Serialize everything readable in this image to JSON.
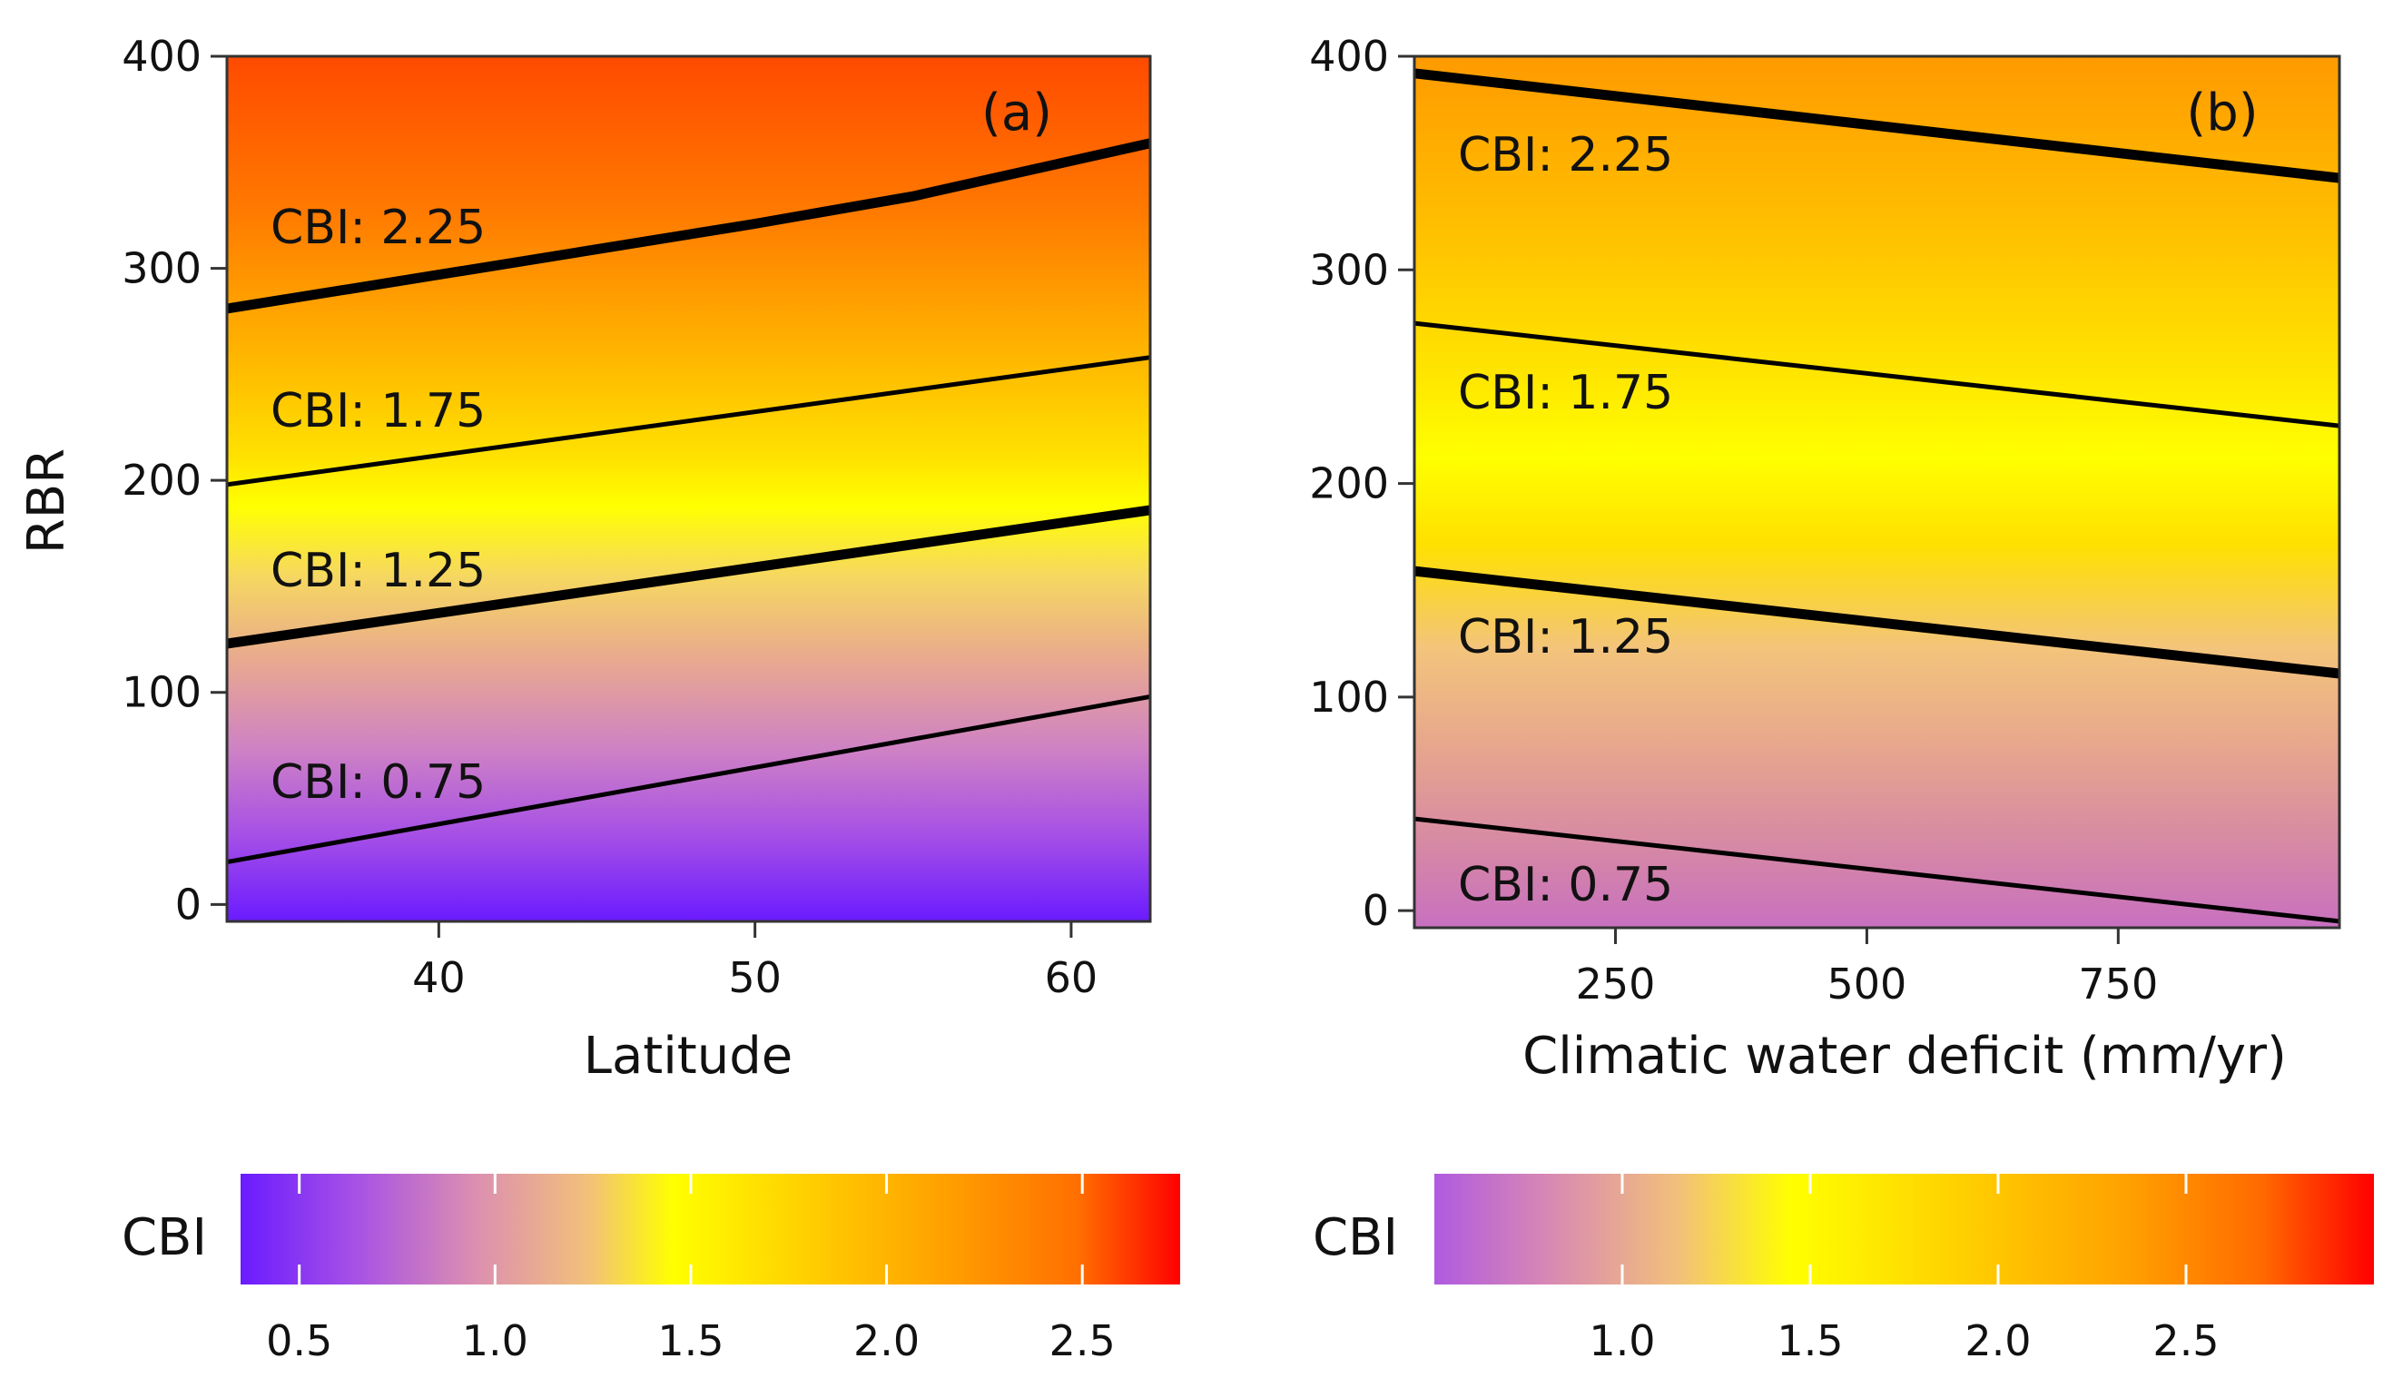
{
  "chart_data": [
    {
      "type": "heatmap",
      "panel_label": "(a)",
      "xlabel": "Latitude",
      "ylabel": "RBR",
      "xlim": [
        33.3,
        62.5
      ],
      "ylim": [
        -8,
        400
      ],
      "x_ticks": [
        40,
        50,
        60
      ],
      "y_ticks": [
        0,
        100,
        200,
        300,
        400
      ],
      "fill_variable": "CBI",
      "contours": [
        {
          "label": "CBI: 2.25",
          "level": 2.25,
          "points": [
            [
              33.3,
              281
            ],
            [
              40,
              297
            ],
            [
              45,
              309
            ],
            [
              50,
              321
            ],
            [
              55,
              334
            ],
            [
              62.5,
              359
            ]
          ],
          "emphasis": "thick"
        },
        {
          "label": "CBI: 1.75",
          "level": 1.75,
          "points": [
            [
              33.3,
              198
            ],
            [
              62.5,
              258
            ]
          ],
          "emphasis": "thin"
        },
        {
          "label": "CBI: 1.25",
          "level": 1.25,
          "points": [
            [
              33.3,
              123
            ],
            [
              62.5,
              186
            ]
          ],
          "emphasis": "thick"
        },
        {
          "label": "CBI: 0.75",
          "level": 0.75,
          "points": [
            [
              33.3,
              20
            ],
            [
              62.5,
              98
            ]
          ],
          "emphasis": "thin"
        }
      ],
      "colorbar": {
        "title": "CBI",
        "ticks": [
          0.5,
          1.0,
          1.5,
          2.0,
          2.5
        ],
        "tick_labels": [
          "0.5",
          "1.0",
          "1.5",
          "2.0",
          "2.5"
        ],
        "range": [
          0.35,
          2.75
        ]
      }
    },
    {
      "type": "heatmap",
      "panel_label": "(b)",
      "xlabel": "Climatic water deficit (mm/yr)",
      "ylabel": "",
      "xlim": [
        50,
        970
      ],
      "ylim": [
        -8,
        400
      ],
      "x_ticks": [
        250,
        500,
        750
      ],
      "y_ticks": [
        0,
        100,
        200,
        300,
        400
      ],
      "fill_variable": "CBI",
      "contours": [
        {
          "label": "CBI: 2.25",
          "level": 2.25,
          "points": [
            [
              50,
              392
            ],
            [
              970,
              343
            ]
          ],
          "emphasis": "thick"
        },
        {
          "label": "CBI: 1.75",
          "level": 1.75,
          "points": [
            [
              50,
              275
            ],
            [
              970,
              227
            ]
          ],
          "emphasis": "thin"
        },
        {
          "label": "CBI: 1.25",
          "level": 1.25,
          "points": [
            [
              50,
              159
            ],
            [
              970,
              111
            ]
          ],
          "emphasis": "thick"
        },
        {
          "label": "CBI: 0.75",
          "level": 0.75,
          "points": [
            [
              50,
              43
            ],
            [
              970,
              -5
            ]
          ],
          "emphasis": "thin"
        }
      ],
      "colorbar": {
        "title": "CBI",
        "ticks": [
          1.0,
          1.5,
          2.0,
          2.5
        ],
        "tick_labels": [
          "1.0",
          "1.5",
          "2.0",
          "2.5"
        ],
        "range": [
          0.5,
          3.0
        ]
      }
    }
  ],
  "colors": {
    "violet": "#6a1bff",
    "orchid": "#b05ae0",
    "pink": "#dc8fb0",
    "peach": "#f2c07a",
    "yellow": "#ffff00",
    "gold": "#ffd000",
    "orange": "#ff9000",
    "red": "#ff0000",
    "line": "#000000"
  }
}
